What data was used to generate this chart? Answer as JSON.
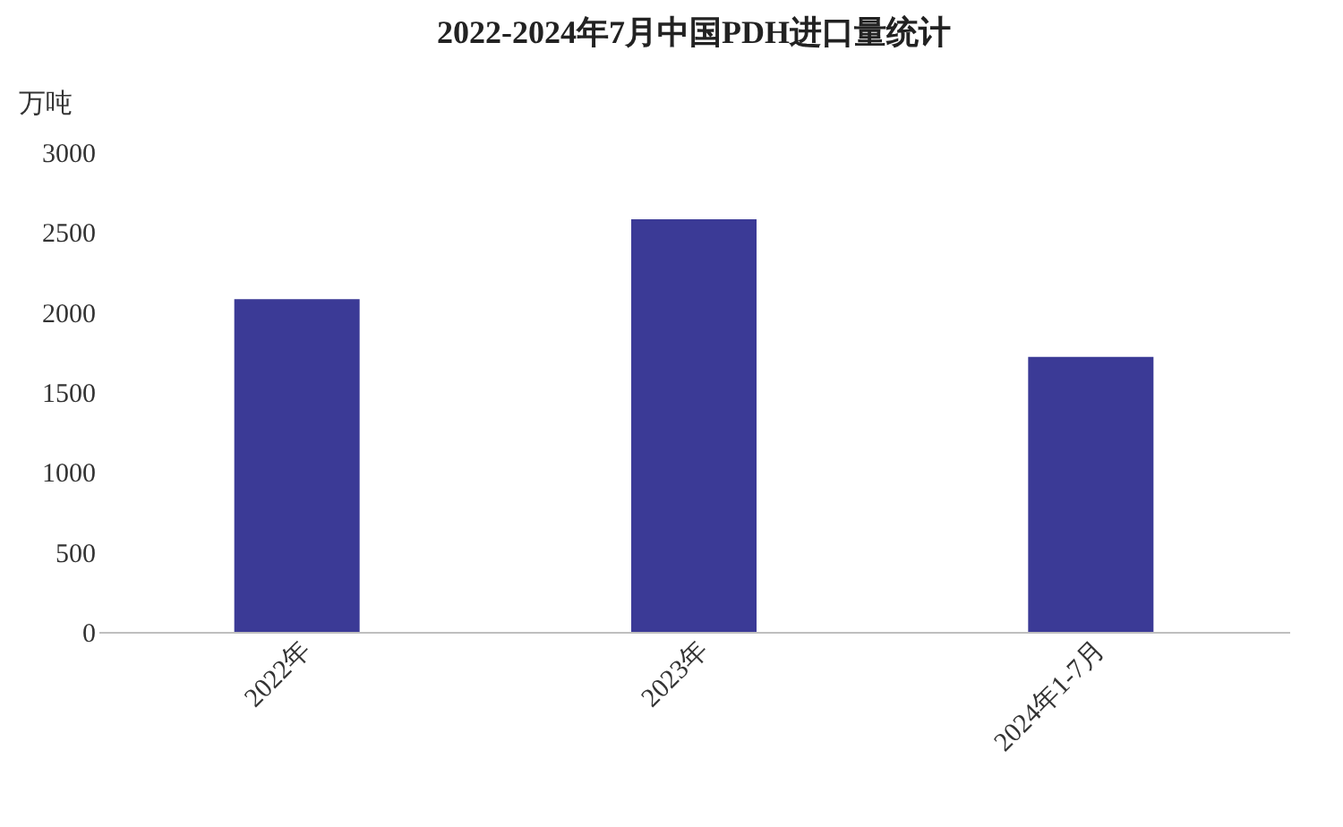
{
  "chart_data": {
    "type": "bar",
    "title": "2022-2024年7月中国PDH进口量统计",
    "ylabel": "万吨",
    "categories": [
      "2022年",
      "2023年",
      "2024年1-7月"
    ],
    "values": [
      2080,
      2580,
      1720
    ],
    "color": "#3b3a96",
    "ylim": [
      0,
      3000
    ],
    "yticks": [
      0,
      500,
      1000,
      1500,
      2000,
      2500,
      3000
    ],
    "grid": false
  }
}
